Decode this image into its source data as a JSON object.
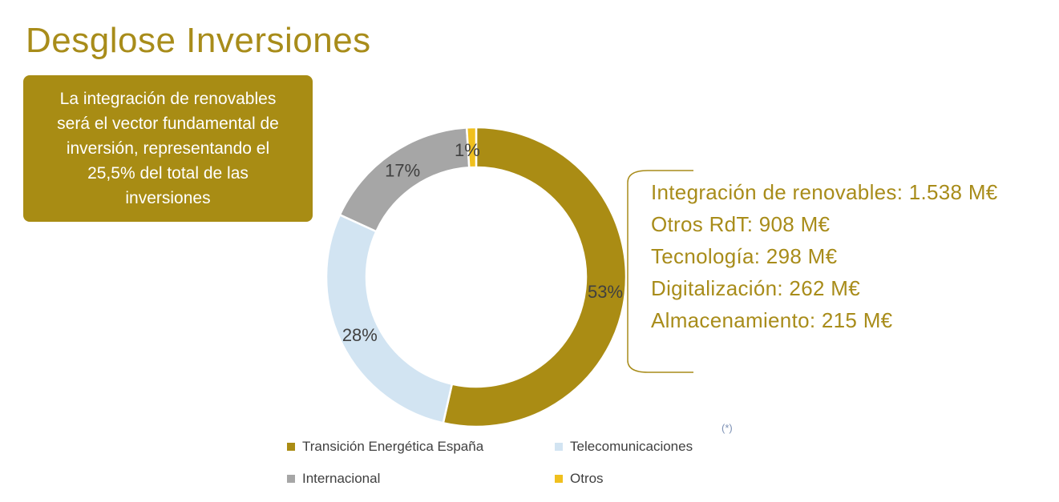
{
  "title": "Desglose Inversiones",
  "callout": "La integración de renovables\nserá el vector fundamental  de\ninversión, representando el\n25,5% del total de las\ninversiones",
  "details": [
    "Integración de renovables: 1.538 M€",
    "Otros RdT: 908 M€",
    "Tecnología: 298 M€",
    "Digitalización: 262 M€",
    "Almacenamiento: 215 M€"
  ],
  "note": "(*)",
  "chart_data": {
    "type": "pie",
    "donut": true,
    "categories": [
      "Transición Energética España",
      "Telecomunicaciones",
      "Internacional",
      "Otros"
    ],
    "values": [
      53,
      28,
      17,
      1
    ],
    "labels": [
      "53%",
      "28%",
      "17%",
      "1%"
    ],
    "colors": [
      "#aa8c14",
      "#d2e4f2",
      "#a6a6a6",
      "#f0c01e"
    ],
    "start_angle_deg": 0,
    "legend_position": "bottom"
  }
}
